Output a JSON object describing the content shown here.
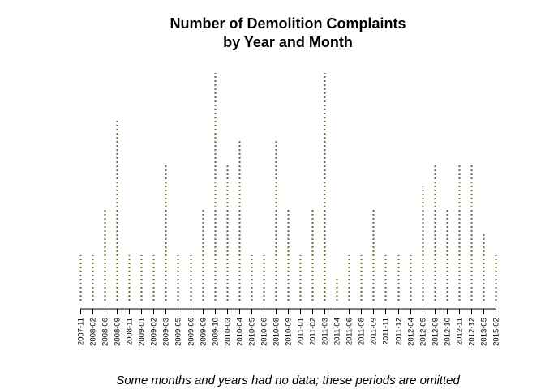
{
  "chart_data": {
    "type": "bar",
    "title_line1": "Number of Demolition Complaints",
    "title_line2": "by Year and Month",
    "note": "Some months and years had no data; these periods are omitted",
    "xlabel": "",
    "ylabel": "",
    "bar_style": "dotted vertical lines",
    "bar_color": "#6b6b3a",
    "axis_color": "#000000",
    "categories": [
      "2007-11",
      "2008-02",
      "2008-06",
      "2008-09",
      "2008-11",
      "2009-01",
      "2009-02",
      "2009-03",
      "2009-05",
      "2009-06",
      "2009-09",
      "2009-10",
      "2010-03",
      "2010-04",
      "2010-05",
      "2010-06",
      "2010-08",
      "2010-09",
      "2011-01",
      "2011-02",
      "2011-03",
      "2011-04",
      "2011-06",
      "2011-08",
      "2011-09",
      "2011-11",
      "2011-12",
      "2012-04",
      "2012-05",
      "2012-09",
      "2012-10",
      "2012-11",
      "2012-12",
      "2013-05",
      "2015-02"
    ],
    "values": [
      2,
      2,
      4,
      8,
      2,
      2,
      2,
      6,
      2,
      2,
      4,
      10,
      6,
      7,
      2,
      2,
      7,
      4,
      2,
      4,
      10,
      1,
      2,
      2,
      4,
      2,
      2,
      2,
      5,
      6,
      4,
      6,
      6,
      3,
      2
    ],
    "ylim": [
      0,
      10.5
    ]
  }
}
